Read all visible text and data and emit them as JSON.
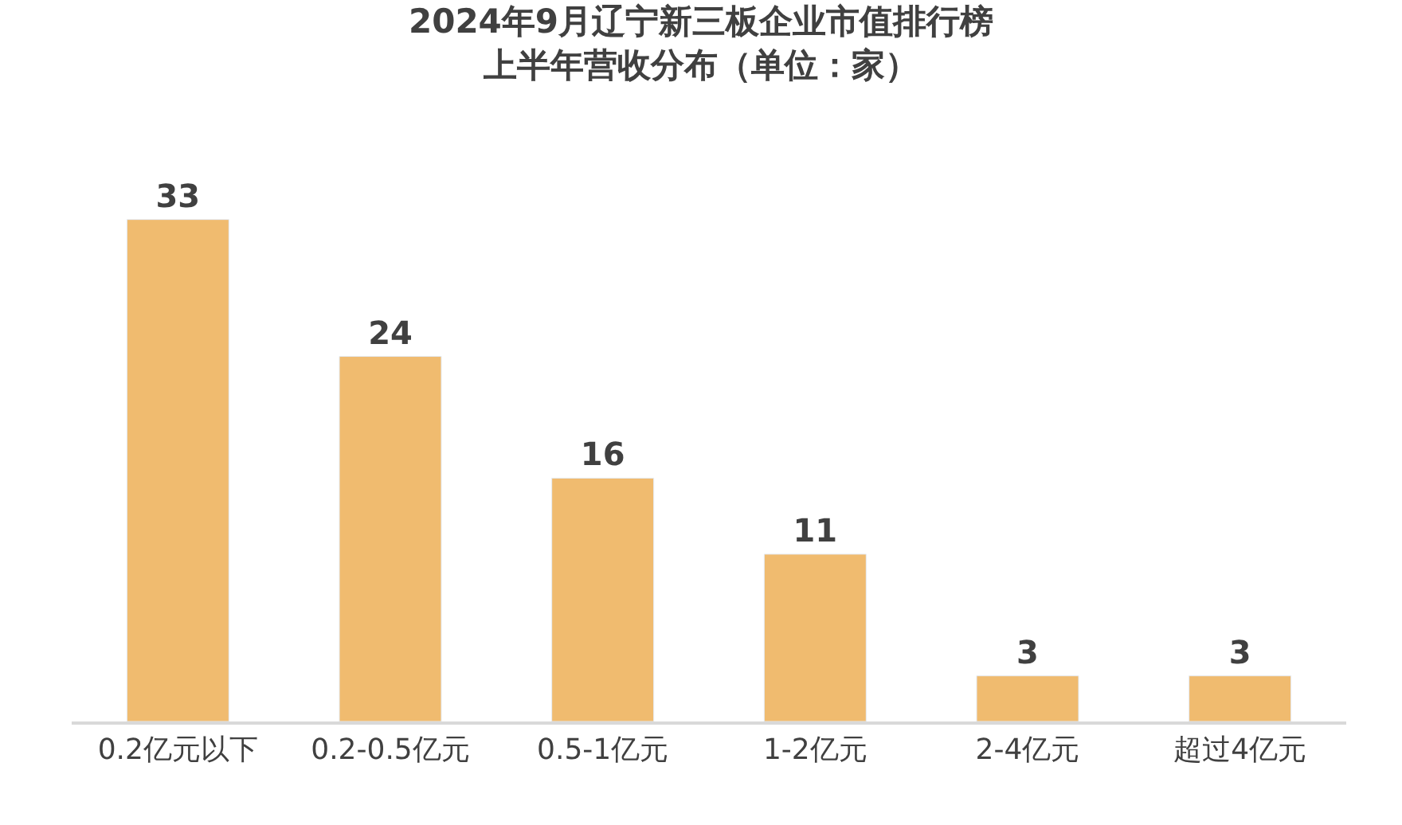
{
  "chart_data": {
    "type": "bar",
    "title": "2024年9月辽宁新三板企业市值排行榜",
    "subtitle": "上半年营收分布（单位：家）",
    "categories": [
      "0.2亿元以下",
      "0.2-0.5亿元",
      "0.5-1亿元",
      "1-2亿元",
      "2-4亿元",
      "超过4亿元"
    ],
    "values": [
      33,
      24,
      16,
      11,
      3,
      3
    ],
    "color": "#f0bb6f",
    "data_labels": true
  }
}
